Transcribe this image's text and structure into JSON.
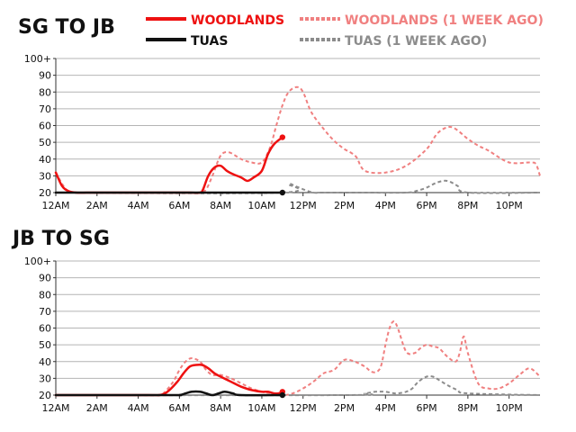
{
  "colors": {
    "woodlands": "#ee1111",
    "woodlands_prev": "#f08080",
    "tuas": "#111111",
    "tuas_prev": "#8c8c8c",
    "grid": "#b4b4b4",
    "axis": "#333333"
  },
  "legend": [
    {
      "label": "WOODLANDS",
      "style": "solid",
      "color_key": "woodlands"
    },
    {
      "label": "WOODLANDS (1 WEEK AGO)",
      "style": "dashed",
      "color_key": "woodlands_prev"
    },
    {
      "label": "TUAS",
      "style": "solid",
      "color_key": "tuas"
    },
    {
      "label": "TUAS (1 WEEK AGO)",
      "style": "dashed",
      "color_key": "tuas_prev"
    }
  ],
  "chart_data": [
    {
      "type": "line",
      "title": "SG TO JB",
      "xlabel": "",
      "ylabel": "",
      "xlim": [
        0,
        23.5
      ],
      "ylim": [
        20,
        100
      ],
      "x_ticks": [
        0,
        2,
        4,
        6,
        8,
        10,
        12,
        14,
        16,
        18,
        20,
        22
      ],
      "x_tick_labels": [
        "12AM",
        "2AM",
        "4AM",
        "6AM",
        "8AM",
        "10AM",
        "12PM",
        "2PM",
        "4PM",
        "6PM",
        "8PM",
        "10PM"
      ],
      "y_ticks": [
        20,
        30,
        40,
        50,
        60,
        70,
        80,
        90,
        100
      ],
      "y_tick_labels": [
        "20",
        "30",
        "40",
        "50",
        "60",
        "70",
        "80",
        "90",
        "100+"
      ],
      "grid": true,
      "series": [
        {
          "name": "WOODLANDS (1 WEEK AGO)",
          "color_key": "woodlands_prev",
          "dashed": true,
          "endpoint": false,
          "x": [
            0,
            0.5,
            1,
            2,
            4,
            6,
            7,
            7.3,
            7.6,
            8,
            8.4,
            9,
            9.5,
            10,
            10.4,
            10.7,
            11,
            11.3,
            11.7,
            12,
            12.4,
            13,
            13.5,
            14,
            14.3,
            14.6,
            15,
            16,
            17,
            18,
            18.5,
            19,
            19.4,
            20,
            20.5,
            21,
            22,
            23,
            23.3,
            23.5
          ],
          "y": [
            32,
            22,
            20,
            20,
            20,
            20,
            20,
            22,
            30,
            42,
            44,
            40,
            38,
            38,
            47,
            60,
            72,
            80,
            83,
            80,
            68,
            58,
            51,
            46,
            44,
            41,
            33,
            32,
            36,
            46,
            55,
            59,
            58,
            52,
            48,
            45,
            38,
            38,
            37,
            30
          ]
        },
        {
          "name": "TUAS (1 WEEK AGO)",
          "color_key": "tuas_prev",
          "dashed": true,
          "endpoint": false,
          "x": [
            0,
            10.9,
            11.3,
            11.6,
            12,
            12.5,
            13,
            15,
            17,
            17.5,
            18,
            18.5,
            19,
            19.5,
            20,
            23.5
          ],
          "y": [
            20,
            20,
            25,
            24,
            22,
            20,
            20,
            20,
            20,
            21,
            23,
            26,
            27,
            24,
            20,
            20
          ]
        },
        {
          "name": "WOODLANDS",
          "color_key": "woodlands",
          "dashed": false,
          "endpoint": true,
          "x": [
            0,
            0.3,
            0.6,
            1,
            1.5,
            2,
            4,
            6,
            6.5,
            7,
            7.15,
            7.4,
            7.7,
            8,
            8.3,
            8.6,
            9,
            9.3,
            9.6,
            10,
            10.3,
            10.6,
            11
          ],
          "y": [
            32,
            24,
            21,
            20,
            20,
            20,
            20,
            20,
            20,
            20,
            22,
            30,
            35,
            36,
            33,
            31,
            29,
            27,
            29,
            33,
            43,
            49,
            53
          ]
        },
        {
          "name": "TUAS",
          "color_key": "tuas",
          "dashed": false,
          "endpoint": true,
          "x": [
            0,
            11
          ],
          "y": [
            20,
            20
          ]
        }
      ]
    },
    {
      "type": "line",
      "title": "JB TO SG",
      "xlabel": "",
      "ylabel": "",
      "xlim": [
        0,
        23.5
      ],
      "ylim": [
        20,
        100
      ],
      "x_ticks": [
        0,
        2,
        4,
        6,
        8,
        10,
        12,
        14,
        16,
        18,
        20,
        22
      ],
      "x_tick_labels": [
        "12AM",
        "2AM",
        "4AM",
        "6AM",
        "8AM",
        "10AM",
        "12PM",
        "2PM",
        "4PM",
        "6PM",
        "8PM",
        "10PM"
      ],
      "y_ticks": [
        20,
        30,
        40,
        50,
        60,
        70,
        80,
        90,
        100
      ],
      "y_tick_labels": [
        "20",
        "30",
        "40",
        "50",
        "60",
        "70",
        "80",
        "90",
        "100+"
      ],
      "grid": true,
      "series": [
        {
          "name": "WOODLANDS (1 WEEK AGO)",
          "color_key": "woodlands_prev",
          "dashed": true,
          "endpoint": false,
          "x": [
            0,
            4,
            5,
            5.3,
            5.7,
            6,
            6.3,
            6.6,
            7,
            7.3,
            7.6,
            8,
            8.5,
            9,
            9.5,
            10,
            10.5,
            11,
            11.5,
            12,
            12.5,
            13,
            13.5,
            14,
            14.5,
            15,
            15.3,
            15.6,
            15.8,
            16,
            16.2,
            16.4,
            16.6,
            17,
            17.4,
            17.7,
            18,
            18.3,
            18.6,
            19,
            19.4,
            19.6,
            19.8,
            20,
            20.5,
            21,
            21.5,
            22,
            22.5,
            23,
            23.5
          ],
          "y": [
            20,
            20,
            20,
            22,
            28,
            35,
            40,
            42,
            40,
            35,
            32,
            32,
            30,
            27,
            24,
            22,
            21,
            20,
            21,
            24,
            28,
            33,
            35,
            41,
            40,
            37,
            34,
            34,
            38,
            50,
            60,
            64,
            60,
            46,
            45,
            48,
            50,
            49,
            48,
            43,
            40,
            45,
            55,
            45,
            27,
            24,
            24,
            27,
            32,
            36,
            31
          ]
        },
        {
          "name": "TUAS (1 WEEK AGO)",
          "color_key": "tuas_prev",
          "dashed": true,
          "endpoint": false,
          "x": [
            0,
            14,
            15,
            15.5,
            16,
            16.5,
            17,
            17.3,
            17.6,
            18,
            18.3,
            18.6,
            19,
            19.5,
            20,
            23.5
          ],
          "y": [
            20,
            20,
            21,
            22,
            22,
            21,
            22,
            24,
            28,
            31,
            31,
            29,
            26,
            23,
            21,
            20
          ]
        },
        {
          "name": "WOODLANDS",
          "color_key": "woodlands",
          "dashed": false,
          "endpoint": true,
          "x": [
            0,
            4.5,
            5,
            5.3,
            5.6,
            5.9,
            6.2,
            6.5,
            6.8,
            7.1,
            7.4,
            7.7,
            8,
            8.5,
            9,
            9.5,
            10,
            10.3,
            10.6,
            10.8,
            11
          ],
          "y": [
            20,
            20,
            20,
            21,
            24,
            28,
            33,
            37,
            38,
            38,
            36,
            33,
            31,
            28,
            25,
            23,
            22,
            22,
            21,
            21,
            22
          ]
        },
        {
          "name": "TUAS",
          "color_key": "tuas",
          "dashed": false,
          "endpoint": true,
          "x": [
            0,
            5.5,
            6,
            6.3,
            6.6,
            7,
            7.3,
            7.6,
            7.9,
            8.2,
            8.6,
            9,
            11
          ],
          "y": [
            20,
            20,
            20,
            21,
            22,
            22,
            21,
            20,
            21,
            22,
            21,
            20,
            20
          ]
        }
      ]
    }
  ]
}
